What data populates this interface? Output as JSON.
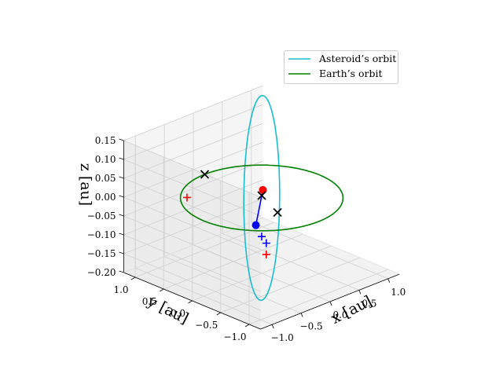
{
  "chart_data": {
    "type": "line",
    "projection": "3d",
    "xlabel": "x [au]",
    "ylabel": "y [au]",
    "zlabel": "z [au]",
    "xlim": [
      -1.2,
      1.2
    ],
    "ylim": [
      -1.2,
      1.2
    ],
    "zlim": [
      -0.2,
      0.15
    ],
    "xticks": [
      "−1.0",
      "−0.5",
      "0.0",
      "0.5",
      "1.0"
    ],
    "yticks": [
      "−1.0",
      "−0.5",
      "0.0",
      "0.5",
      "1.0"
    ],
    "zticks": [
      "−0.20",
      "−0.15",
      "−0.10",
      "−0.05",
      "0.00",
      "0.05",
      "0.10",
      "0.15"
    ],
    "grid": true,
    "legend_position": "top-right",
    "legend": [
      {
        "label": "Asteroid’s orbit",
        "color": "#17becf"
      },
      {
        "label": "Earth’s orbit",
        "color": "#008000"
      }
    ],
    "series": [
      {
        "name": "Asteroid’s orbit",
        "color": "#17becf",
        "kind": "orbit",
        "a": 1.05,
        "b": 0.22,
        "rotation_deg": 45,
        "z_amplitude": 0.18,
        "z_phase_deg": 0
      },
      {
        "name": "Earth’s orbit",
        "color": "#008000",
        "kind": "orbit",
        "a": 1.0,
        "b": 1.0,
        "rotation_deg": 0,
        "z_amplitude": 0,
        "z_phase_deg": 0
      }
    ],
    "markers": [
      {
        "color": "#ff0000",
        "symbol": "circle",
        "x": 0.02,
        "y": 0.0,
        "z": 0.02
      },
      {
        "color": "#0000ff",
        "symbol": "circle",
        "x": -0.15,
        "y": -0.05,
        "z": -0.06
      },
      {
        "color": "#ff0000",
        "symbol": "plus",
        "x": -0.65,
        "y": 0.65,
        "z": 0.0
      },
      {
        "color": "#ff0000",
        "symbol": "plus",
        "x": 0.04,
        "y": -0.04,
        "z": -0.15
      },
      {
        "color": "#0000ff",
        "symbol": "plus",
        "x": -0.02,
        "y": -0.02,
        "z": -0.1
      },
      {
        "color": "#0000ff",
        "symbol": "plus",
        "x": 0.04,
        "y": -0.04,
        "z": -0.12
      },
      {
        "color": "#000000",
        "symbol": "cross",
        "x": 0.05,
        "y": 0.05,
        "z": 0.0
      },
      {
        "color": "#000000",
        "symbol": "cross",
        "x": -0.17,
        "y": -0.45,
        "z": 0.0
      },
      {
        "color": "#000000",
        "symbol": "cross",
        "x": 0.0,
        "y": 1.0,
        "z": 0.0
      }
    ],
    "segments": [
      {
        "color": "#0000ff",
        "from": [
          0.02,
          0.0,
          0.02
        ],
        "to": [
          -0.15,
          -0.05,
          -0.06
        ]
      }
    ]
  }
}
